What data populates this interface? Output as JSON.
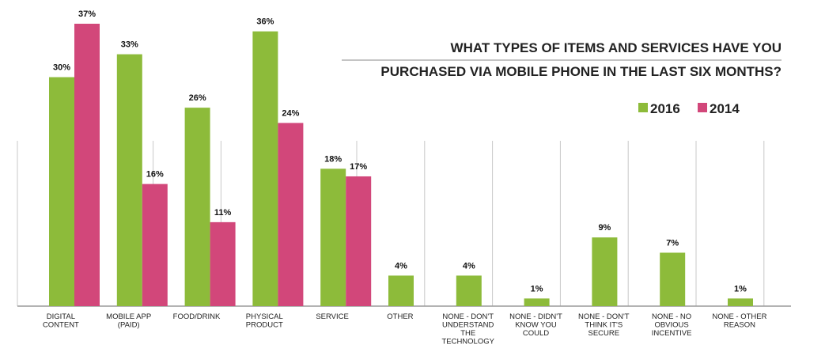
{
  "chart_data": {
    "type": "bar",
    "title_lines": [
      "WHAT TYPES OF ITEMS AND SERVICES HAVE YOU",
      "PURCHASED VIA MOBILE PHONE IN THE LAST SIX MONTHS?"
    ],
    "categories": [
      [
        "DIGITAL",
        "CONTENT"
      ],
      [
        "MOBILE APP",
        "(PAID)"
      ],
      [
        "FOOD/DRINK"
      ],
      [
        "PHYSICAL",
        "PRODUCT"
      ],
      [
        "SERVICE"
      ],
      [
        "OTHER"
      ],
      [
        "NONE - DON'T",
        "UNDERSTAND",
        "THE",
        "TECHNOLOGY"
      ],
      [
        "NONE - DIDN'T",
        "KNOW YOU",
        "COULD"
      ],
      [
        "NONE - DON'T",
        "THINK IT'S",
        "SECURE"
      ],
      [
        "NONE - NO",
        "OBVIOUS",
        "INCENTIVE"
      ],
      [
        "NONE - OTHER",
        "REASON"
      ]
    ],
    "series": [
      {
        "name": "2016",
        "color": "#8dbb3a",
        "values": [
          30,
          33,
          26,
          36,
          18,
          4,
          4,
          1,
          9,
          7,
          1
        ],
        "labels": [
          "30%",
          "33%",
          "26%",
          "36%",
          "18%",
          "4%",
          "4%",
          "1%",
          "9%",
          "7%",
          "1%"
        ]
      },
      {
        "name": "2014",
        "color": "#d2477a",
        "values": [
          37,
          16,
          11,
          24,
          17,
          null,
          null,
          null,
          null,
          null,
          null
        ],
        "labels": [
          "37%",
          "16%",
          "11%",
          "24%",
          "17%",
          "",
          "",
          "",
          "",
          "",
          ""
        ]
      }
    ],
    "ylim": [
      0,
      37
    ],
    "grid": "vertical category separators",
    "legend": "top-right"
  }
}
